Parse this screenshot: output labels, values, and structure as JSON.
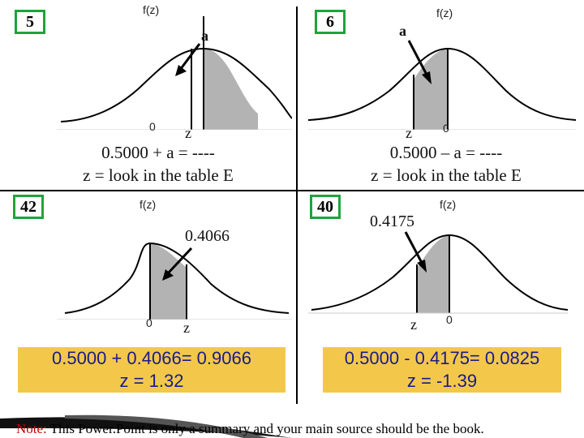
{
  "panels": [
    {
      "number": "5",
      "fz_label": "f(z)",
      "area_label": "a",
      "zero_label": "0",
      "z_label": "z",
      "eq1": "0.5000 + a = ----",
      "eq2": "z = look in the table E"
    },
    {
      "number": "6",
      "fz_label": "f(z)",
      "area_label": "a",
      "zero_label": "0",
      "z_label": "z",
      "eq1": "0.5000 – a = ----",
      "eq2": "z = look in the table E"
    },
    {
      "number": "42",
      "fz_label": "f(z)",
      "area_label": "0.4066",
      "zero_label": "0",
      "z_label": "z",
      "result1": "0.5000 + 0.4066= 0.9066",
      "result2": "z = 1.32"
    },
    {
      "number": "40",
      "fz_label": "f(z)",
      "area_label": "0.4175",
      "zero_label": "0",
      "z_label": "z",
      "result1": "0.5000 - 0.4175= 0.0825",
      "result2": "z = -1.39"
    }
  ],
  "note": {
    "label": "Note:",
    "text": " This Power.Point is only a summary and your main source should be the book."
  },
  "colors": {
    "badge_border": "#1fa33a",
    "result_box": "#f3c84a",
    "result_text": "#1a1a8c",
    "note_label": "#c00000",
    "shade": "#b3b3b3"
  },
  "icons": [
    "bell-curve-icon",
    "arrow-icon"
  ]
}
